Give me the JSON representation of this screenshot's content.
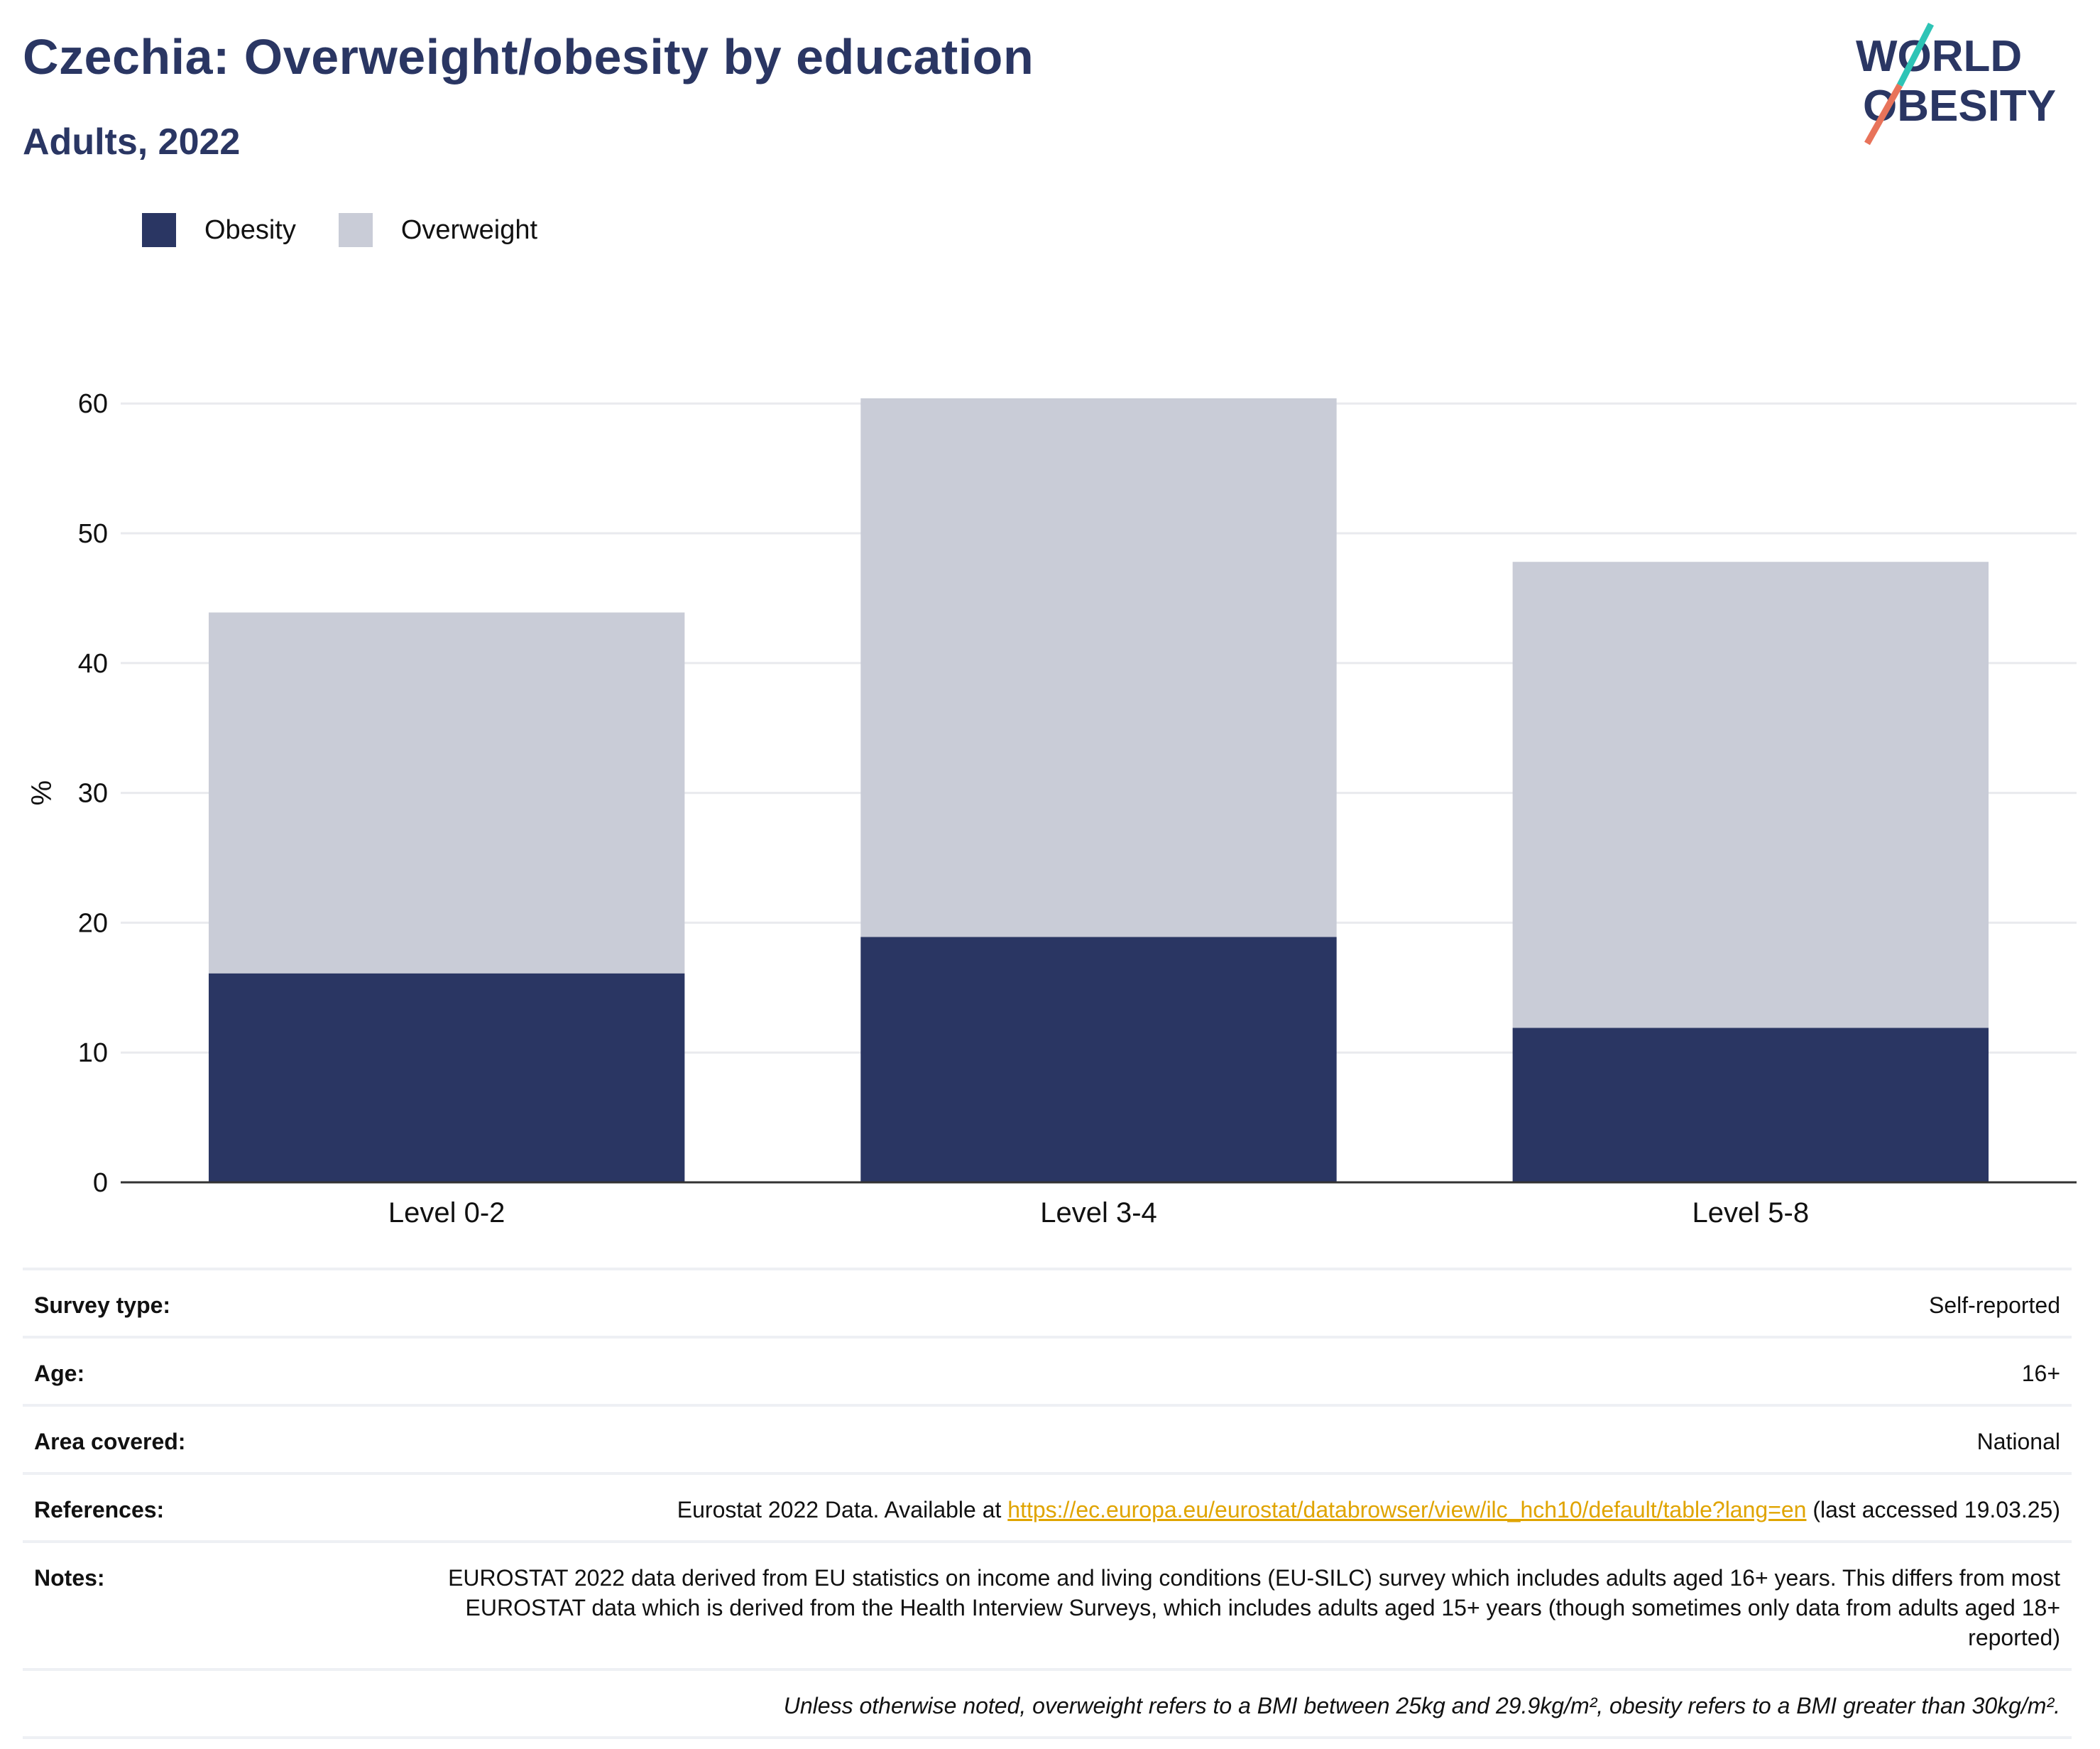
{
  "title": "Czechia: Overweight/obesity by education",
  "subtitle": "Adults, 2022",
  "logo": {
    "line1": "WORLD",
    "line2": "OBESITY",
    "slash_colors": [
      "#2ec4b6",
      "#e8735a"
    ],
    "text_color": "#2a3663"
  },
  "legend": [
    {
      "label": "Obesity",
      "color": "#2a3663"
    },
    {
      "label": "Overweight",
      "color": "#c9ccd7"
    }
  ],
  "chart_data": {
    "type": "bar",
    "stacked": true,
    "categories": [
      "Level 0-2",
      "Level 3-4",
      "Level 5-8"
    ],
    "series": [
      {
        "name": "Obesity",
        "color": "#2a3663",
        "values": [
          16.1,
          18.9,
          11.9
        ]
      },
      {
        "name": "Overweight",
        "color": "#c9ccd7",
        "values": [
          27.8,
          41.5,
          35.9
        ]
      }
    ],
    "ylabel": "%",
    "xlabel": "",
    "ylim": [
      0,
      65
    ],
    "yticks": [
      0,
      10,
      20,
      30,
      40,
      50,
      60
    ],
    "grid": true,
    "legend_position": "top-left"
  },
  "info": {
    "survey_type": {
      "label": "Survey type:",
      "value": "Self-reported"
    },
    "age": {
      "label": "Age:",
      "value": "16+"
    },
    "area": {
      "label": "Area covered:",
      "value": "National"
    },
    "references": {
      "label": "References:",
      "prefix": "Eurostat 2022 Data. Available at ",
      "link": "https://ec.europa.eu/eurostat/databrowser/view/ilc_hch10/default/table?lang=en",
      "suffix": " (last accessed 19.03.25)"
    },
    "notes": {
      "label": "Notes:",
      "value": "EUROSTAT 2022 data derived from EU statistics on income and living conditions (EU-SILC) survey which includes adults aged 16+ years. This differs from most EUROSTAT data which is derived from the Health Interview Surveys, which includes adults aged 15+ years (though sometimes only data from adults aged 18+ reported)"
    },
    "footnote": "Unless otherwise noted, overweight refers to a BMI between 25kg and 29.9kg/m², obesity refers to a BMI greater than 30kg/m²."
  }
}
